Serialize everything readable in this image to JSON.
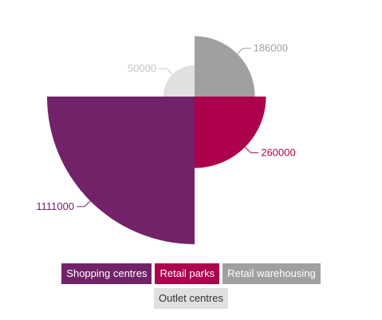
{
  "chart_data": {
    "type": "pie",
    "subtype": "variable-radius",
    "categories": [
      "Shopping centres",
      "Retail parks",
      "Retail warehousing",
      "Outlet centres"
    ],
    "values": [
      1111000,
      260000,
      186000,
      50000
    ],
    "colors": [
      "#722269",
      "#ad004d",
      "#a0a0a0",
      "#e0e0e0"
    ],
    "label_colors": [
      "#722269",
      "#ad004d",
      "#a0a0a0",
      "#c6c6c6"
    ],
    "legend_text_colors": [
      "#ffffff",
      "#ffffff",
      "#ffffff",
      "#333333"
    ],
    "legend_placement": "bottom"
  }
}
